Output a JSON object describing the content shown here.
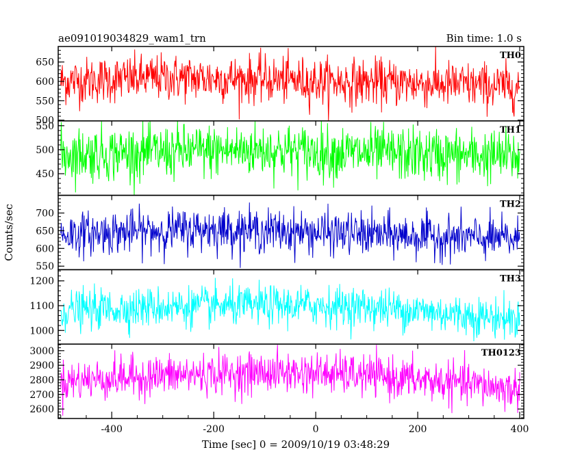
{
  "chart_data": {
    "type": "line",
    "title_left": "ae091019034829_wam1_trn",
    "title_right": "Bin time: 1.0 s",
    "xlabel": "Time [sec] 0 = 2009/10/19 03:48:29",
    "ylabel": "Counts/sec",
    "xlim": [
      -505,
      408
    ],
    "x_ticks": [
      -400,
      -200,
      0,
      200,
      400
    ],
    "x_range": [
      -500,
      400
    ],
    "bin_time": 1.0,
    "grid": false,
    "panels": [
      {
        "name": "TH0",
        "color": "#ff0000",
        "ylim": [
          498,
          690
        ],
        "y_ticks": [
          500,
          550,
          600,
          650
        ],
        "mean_profile": [
          [
            -500,
            600
          ],
          [
            -300,
            610
          ],
          [
            -100,
            605
          ],
          [
            0,
            600
          ],
          [
            200,
            595
          ],
          [
            300,
            590
          ],
          [
            400,
            585
          ]
        ],
        "spread": 30,
        "max": 690,
        "min": 498
      },
      {
        "name": "TH1",
        "color": "#00ff00",
        "ylim": [
          405,
          560
        ],
        "y_ticks": [
          450,
          500,
          550
        ],
        "mean_profile": [
          [
            -500,
            490
          ],
          [
            -300,
            495
          ],
          [
            -100,
            500
          ],
          [
            0,
            495
          ],
          [
            200,
            490
          ],
          [
            300,
            488
          ],
          [
            400,
            485
          ]
        ],
        "spread": 28,
        "max": 560,
        "min": 405
      },
      {
        "name": "TH2",
        "color": "#0000cc",
        "ylim": [
          540,
          750
        ],
        "y_ticks": [
          550,
          600,
          650,
          700
        ],
        "mean_profile": [
          [
            -500,
            640
          ],
          [
            -300,
            650
          ],
          [
            -200,
            655
          ],
          [
            -100,
            650
          ],
          [
            0,
            645
          ],
          [
            200,
            635
          ],
          [
            400,
            625
          ]
        ],
        "spread": 30,
        "max": 750,
        "min": 545
      },
      {
        "name": "TH3",
        "color": "#00ffff",
        "ylim": [
          945,
          1245
        ],
        "y_ticks": [
          1000,
          1100,
          1200
        ],
        "mean_profile": [
          [
            -500,
            1080
          ],
          [
            -300,
            1095
          ],
          [
            -100,
            1100
          ],
          [
            0,
            1100
          ],
          [
            100,
            1095
          ],
          [
            200,
            1080
          ],
          [
            300,
            1060
          ],
          [
            400,
            1045
          ]
        ],
        "spread": 40,
        "max": 1240,
        "min": 950
      },
      {
        "name": "TH0123",
        "color": "#ff00ff",
        "ylim": [
          2535,
          3045
        ],
        "y_ticks": [
          2600,
          2700,
          2800,
          2900,
          3000
        ],
        "mean_profile": [
          [
            -500,
            2790
          ],
          [
            -300,
            2830
          ],
          [
            -100,
            2850
          ],
          [
            0,
            2845
          ],
          [
            100,
            2830
          ],
          [
            200,
            2800
          ],
          [
            300,
            2770
          ],
          [
            400,
            2730
          ]
        ],
        "spread": 70,
        "max": 3040,
        "min": 2540
      }
    ]
  }
}
